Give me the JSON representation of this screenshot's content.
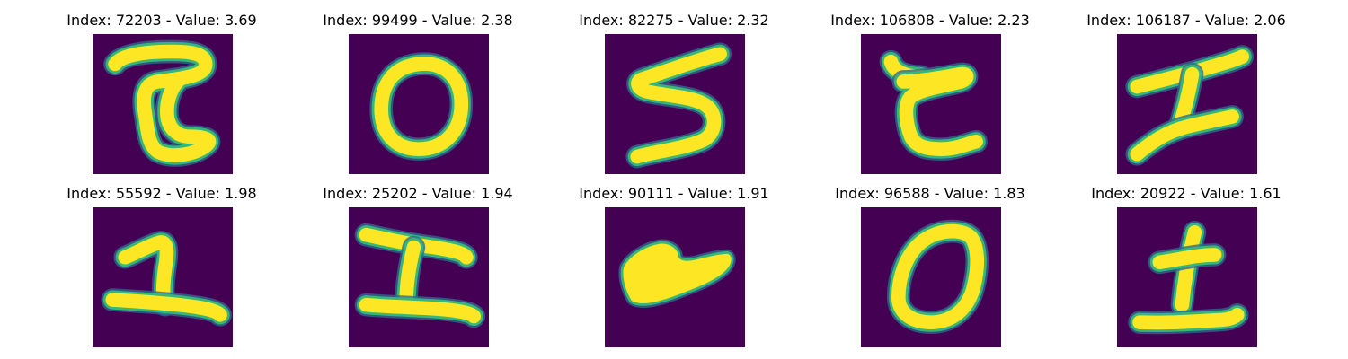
{
  "colors": {
    "background": "#440154",
    "stroke_core": "#fde725",
    "stroke_edge": "#35b779",
    "stroke_outer": "#31688e"
  },
  "panels": [
    {
      "index": "72203",
      "value": "3.69",
      "title": "Index: 72203 - Value: 3.69"
    },
    {
      "index": "99499",
      "value": "2.38",
      "title": "Index: 99499 - Value: 2.38"
    },
    {
      "index": "82275",
      "value": "2.32",
      "title": "Index: 82275 - Value: 2.32"
    },
    {
      "index": "106808",
      "value": "2.23",
      "title": "Index: 106808 - Value: 2.23"
    },
    {
      "index": "106187",
      "value": "2.06",
      "title": "Index: 106187 - Value: 2.06"
    },
    {
      "index": "55592",
      "value": "1.98",
      "title": "Index: 55592 - Value: 1.98"
    },
    {
      "index": "25202",
      "value": "1.94",
      "title": "Index: 25202 - Value: 1.94"
    },
    {
      "index": "90111",
      "value": "1.91",
      "title": "Index: 90111 - Value: 1.91"
    },
    {
      "index": "96588",
      "value": "1.83",
      "title": "Index: 96588 - Value: 1.83"
    },
    {
      "index": "20922",
      "value": "1.61",
      "title": "Index: 20922 - Value: 1.61"
    }
  ]
}
